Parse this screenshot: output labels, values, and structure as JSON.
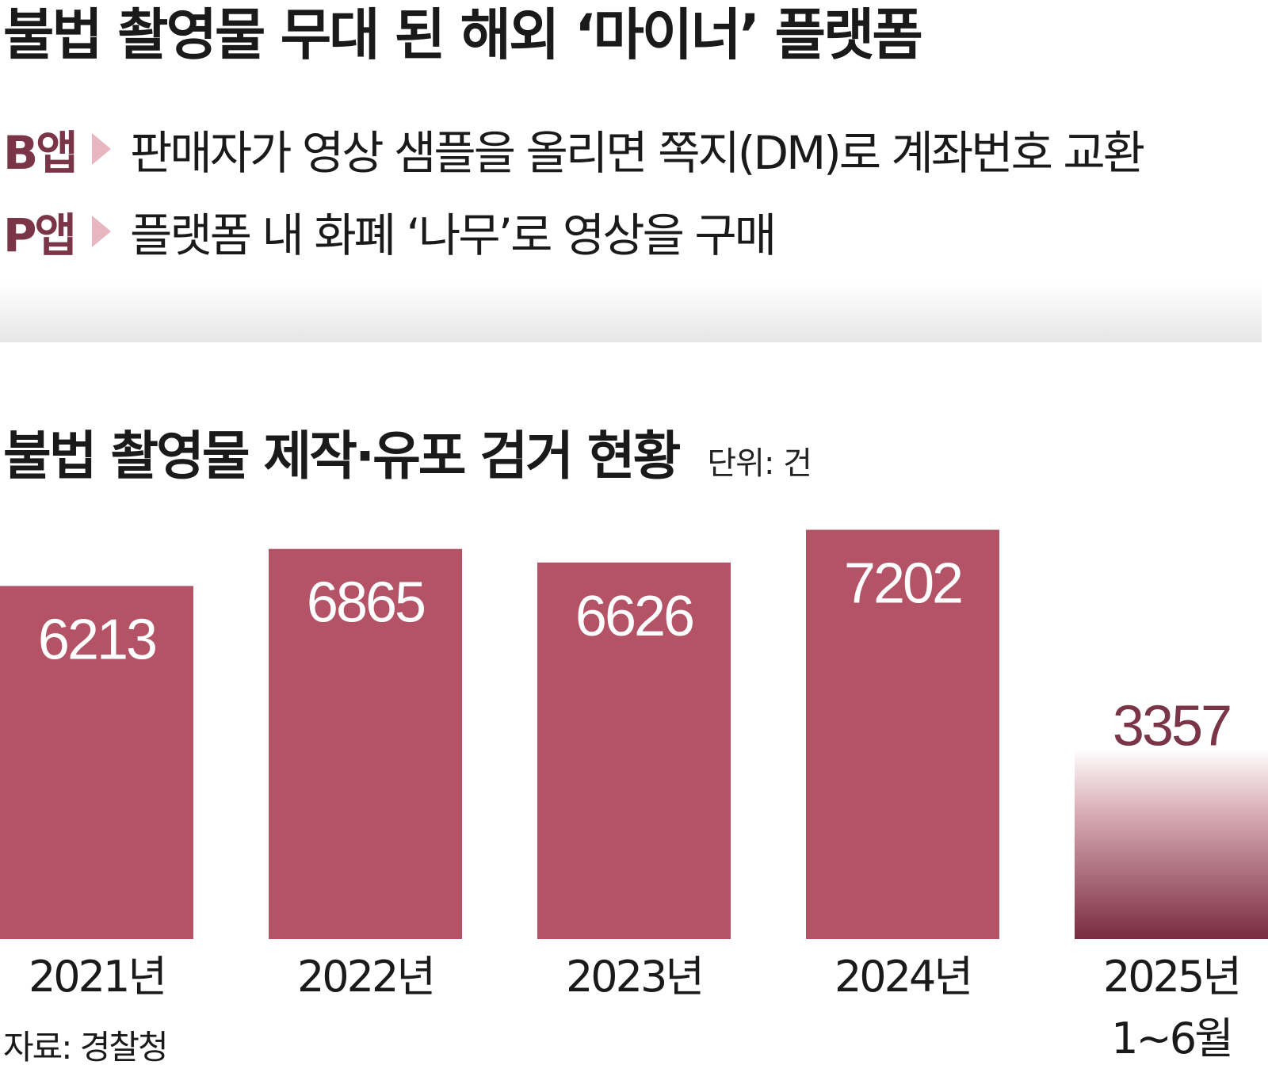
{
  "headline": "불법 촬영물 무대 된 해외 ‘마이너’ 플랫폼",
  "apps": [
    {
      "name": "B앱",
      "description": "판매자가 영상 샘플을 올리면 쪽지(DM)로 계좌번호 교환"
    },
    {
      "name": "P앱",
      "description": "플랫폼 내 화폐 ‘나무’로 영상을 구매"
    }
  ],
  "colors": {
    "bar": "#b35365",
    "bar_dark": "#7a2b40",
    "app_label": "#7a3548",
    "arrow": "#e8b6c0",
    "label_last": "#7a3548"
  },
  "chart_data": {
    "type": "bar",
    "title": "불법 촬영물 제작·유포 검거 현황",
    "unit": "단위: 건",
    "categories": [
      "2021년",
      "2022년",
      "2023년",
      "2024년",
      "2025년 1~6월"
    ],
    "category_lines": [
      [
        "2021년"
      ],
      [
        "2022년"
      ],
      [
        "2023년"
      ],
      [
        "2024년"
      ],
      [
        "2025년",
        "1~6월"
      ]
    ],
    "values": [
      6213,
      6865,
      6626,
      7202,
      3357
    ],
    "value_labels": [
      "6213",
      "6865",
      "6626",
      "7202",
      "3357"
    ],
    "ylim": [
      0,
      7600
    ],
    "grid": false,
    "legend": "none"
  },
  "source": "자료: 경찰청"
}
